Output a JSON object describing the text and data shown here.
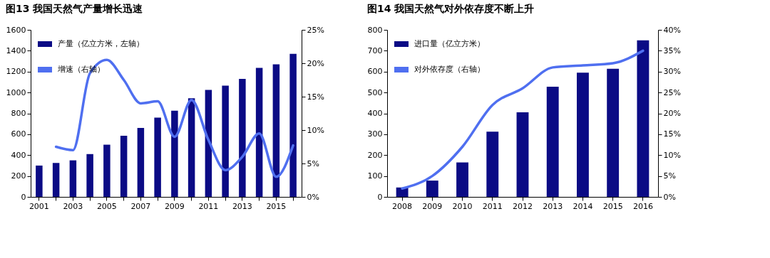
{
  "chart_data": [
    {
      "type": "bar",
      "title": "图13 我国天然气产量增长迅速",
      "categories": [
        "2001",
        null,
        "2003",
        null,
        "2005",
        null,
        "2007",
        null,
        "2009",
        null,
        "2011",
        null,
        "2013",
        null,
        "2015",
        null
      ],
      "series": [
        {
          "name": "产量（亿立方米，左轴）",
          "color": "#0b0b85",
          "values": [
            300,
            325,
            350,
            410,
            500,
            585,
            660,
            760,
            825,
            945,
            1025,
            1065,
            1130,
            1235,
            1270,
            1370
          ]
        },
        {
          "name": "增速（右轴）",
          "color": "#4f6ff0",
          "type": "line",
          "axis": "y2",
          "values": [
            null,
            7.5,
            7,
            18.5,
            20.5,
            17.5,
            14,
            14.3,
            9,
            14.5,
            8.5,
            4,
            6,
            9.5,
            3,
            7.7
          ]
        }
      ],
      "ylim": [
        0,
        1600
      ],
      "yticks": [
        0,
        200,
        400,
        600,
        800,
        1000,
        1200,
        1400,
        1600
      ],
      "y2lim": [
        0,
        25
      ],
      "y2ticks": [
        {
          "value": 0,
          "label": "0%"
        },
        {
          "value": 5,
          "label": "5%"
        },
        {
          "value": 10,
          "label": "10%"
        },
        {
          "value": 15,
          "label": "15%"
        },
        {
          "value": 20,
          "label": "20%"
        },
        {
          "value": 25,
          "label": "25%"
        }
      ],
      "legend": "top left",
      "grid": false
    },
    {
      "type": "bar",
      "title": "图14 我国天然气对外依存度不断上升",
      "categories": [
        "2008",
        "2009",
        "2010",
        "2011",
        "2012",
        "2013",
        "2014",
        "2015",
        "2016"
      ],
      "series": [
        {
          "name": "进口量（亿立方米）",
          "color": "#0b0b85",
          "values": [
            45,
            78,
            165,
            312,
            405,
            528,
            595,
            614,
            750
          ]
        },
        {
          "name": "对外依存度（右轴）",
          "color": "#4f6ff0",
          "type": "line",
          "axis": "y2",
          "values": [
            2,
            5,
            12,
            22,
            26,
            31,
            31.5,
            32,
            35
          ]
        }
      ],
      "ylim": [
        0,
        800
      ],
      "yticks": [
        0,
        100,
        200,
        300,
        400,
        500,
        600,
        700,
        800
      ],
      "y2lim": [
        0,
        40
      ],
      "y2ticks": [
        {
          "value": 0,
          "label": "0%"
        },
        {
          "value": 5,
          "label": "5%"
        },
        {
          "value": 10,
          "label": "10%"
        },
        {
          "value": 15,
          "label": "15%"
        },
        {
          "value": 20,
          "label": "20%"
        },
        {
          "value": 25,
          "label": "25%"
        },
        {
          "value": 30,
          "label": "30%"
        },
        {
          "value": 35,
          "label": "35%"
        },
        {
          "value": 40,
          "label": "40%"
        }
      ],
      "legend": "top left",
      "grid": false
    }
  ]
}
